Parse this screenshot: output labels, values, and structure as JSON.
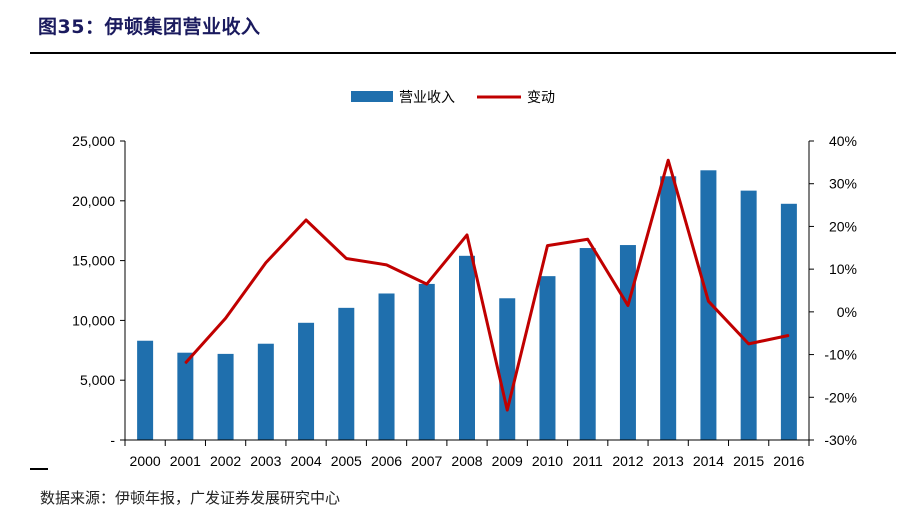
{
  "figure": {
    "title": "图35：伊顿集团营业收入",
    "source": "数据来源：伊顿年报，广发证券发展研究中心"
  },
  "chart_data": {
    "type": "bar",
    "categories": [
      "2000",
      "2001",
      "2002",
      "2003",
      "2004",
      "2005",
      "2006",
      "2007",
      "2008",
      "2009",
      "2010",
      "2011",
      "2012",
      "2013",
      "2014",
      "2015",
      "2016"
    ],
    "series": [
      {
        "name": "营业收入",
        "type": "bar",
        "axis": "left",
        "color": "#1f6fad",
        "values": [
          8300,
          7300,
          7200,
          8050,
          9800,
          11050,
          12250,
          13050,
          15400,
          11850,
          13700,
          16050,
          16300,
          22050,
          22550,
          20850,
          19750
        ]
      },
      {
        "name": "变动",
        "type": "line",
        "axis": "right",
        "color": "#c00000",
        "values": [
          null,
          -12,
          -1.5,
          11.5,
          21.5,
          12.5,
          11,
          6.5,
          18,
          -23,
          15.5,
          17,
          1.5,
          35.5,
          2.5,
          -7.5,
          -5.5
        ]
      }
    ],
    "left_axis": {
      "ylim": [
        0,
        25000
      ],
      "ticks": [
        "-",
        "5,000",
        "10,000",
        "15,000",
        "20,000",
        "25,000"
      ]
    },
    "right_axis": {
      "ylim": [
        -30,
        40
      ],
      "ticks": [
        "-30%",
        "-20%",
        "-10%",
        "0%",
        "10%",
        "20%",
        "30%",
        "40%"
      ]
    },
    "legend_position": "top-center",
    "grid": false
  }
}
